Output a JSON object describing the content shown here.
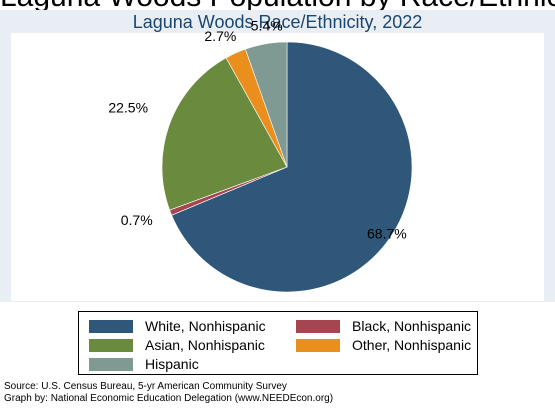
{
  "header": {
    "cut_title": "Laguna Woods Population by Race/Ethnicity"
  },
  "chart_data": {
    "type": "pie",
    "title": "Laguna Woods Race/Ethnicity, 2022",
    "slices": [
      {
        "label": "White, Nonhispanic",
        "value": 68.7,
        "value_label": "68.7%",
        "color": "#2e5779"
      },
      {
        "label": "Black, Nonhispanic",
        "value": 0.7,
        "value_label": "0.7%",
        "color": "#a6444f"
      },
      {
        "label": "Asian, Nonhispanic",
        "value": 22.5,
        "value_label": "22.5%",
        "color": "#6a8a3e"
      },
      {
        "label": "Other, Nonhispanic",
        "value": 2.7,
        "value_label": "2.7%",
        "color": "#ea8f1e"
      },
      {
        "label": "Hispanic",
        "value": 5.4,
        "value_label": "5.4%",
        "color": "#7f9a93"
      }
    ],
    "legend_position": "bottom",
    "colors": {
      "panel_background": "#e8eef3",
      "title_color": "#1a476f",
      "plot_background": "#ffffff"
    }
  },
  "legend": {
    "items": [
      {
        "label": "White, Nonhispanic",
        "color": "#2e5779"
      },
      {
        "label": "Black, Nonhispanic",
        "color": "#a6444f"
      },
      {
        "label": "Asian, Nonhispanic",
        "color": "#6a8a3e"
      },
      {
        "label": "Other, Nonhispanic",
        "color": "#ea8f1e"
      },
      {
        "label": "Hispanic",
        "color": "#7f9a93"
      }
    ]
  },
  "footer": {
    "source_line": "Source:  U.S. Census Bureau, 5-yr American Community Survey",
    "credit_line": "Graph by: National Economic Education Delegation (www.NEEDEcon.org)"
  }
}
